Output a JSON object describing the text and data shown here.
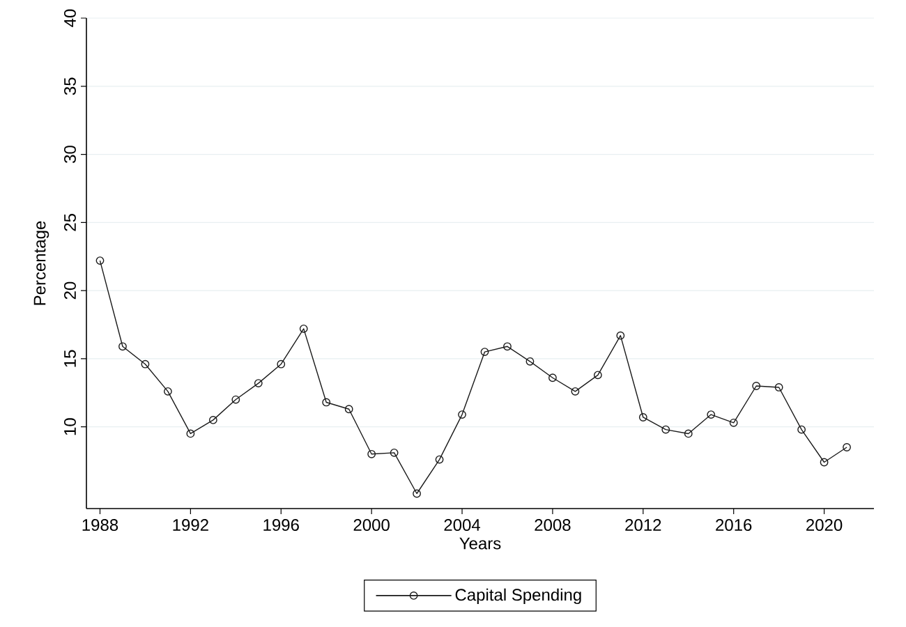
{
  "chart_data": {
    "type": "line",
    "xlabel": "Years",
    "ylabel": "Percentage",
    "x": [
      1988,
      1989,
      1990,
      1991,
      1992,
      1993,
      1994,
      1995,
      1996,
      1997,
      1998,
      1999,
      2000,
      2001,
      2002,
      2003,
      2004,
      2005,
      2006,
      2007,
      2008,
      2009,
      2010,
      2011,
      2012,
      2013,
      2014,
      2015,
      2016,
      2017,
      2018,
      2019,
      2020,
      2021
    ],
    "series": [
      {
        "name": "Capital Spending",
        "color": "#1a1a1a",
        "values": [
          22.2,
          15.9,
          14.6,
          12.6,
          9.5,
          10.5,
          12.0,
          13.2,
          14.6,
          17.2,
          11.8,
          11.3,
          8.0,
          8.1,
          5.1,
          7.6,
          10.9,
          15.5,
          15.9,
          14.8,
          13.6,
          12.6,
          13.8,
          16.7,
          10.7,
          9.8,
          9.5,
          10.9,
          10.3,
          13.0,
          12.9,
          9.8,
          7.4,
          8.5
        ]
      }
    ],
    "xlim": [
      1987.4,
      2022.2
    ],
    "ylim": [
      4,
      40
    ],
    "xticks": [
      1988,
      1992,
      1996,
      2000,
      2004,
      2008,
      2012,
      2016,
      2020
    ],
    "yticks": [
      10,
      15,
      20,
      25,
      30,
      35,
      40
    ],
    "grid": "y",
    "legend": "bottom",
    "marker": "circle",
    "line_style": "solid"
  }
}
